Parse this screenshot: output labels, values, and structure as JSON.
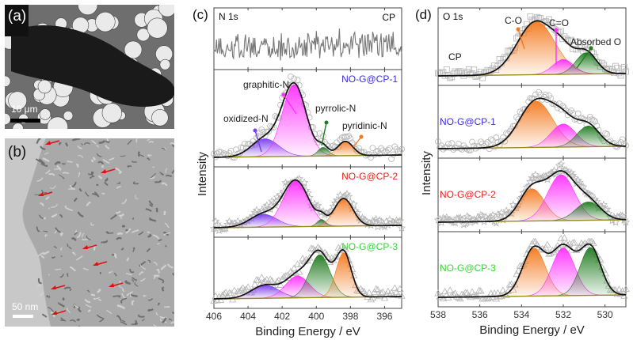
{
  "panels": {
    "a": {
      "label": "(a)",
      "scale_bar": "10 μm"
    },
    "b": {
      "label": "(b)",
      "scale_bar": "50 nm"
    },
    "c": {
      "label": "(c)"
    },
    "d": {
      "label": "(d)"
    }
  },
  "colors": {
    "oxidized": "#7a3cf0",
    "graphitic": "#ff30ff",
    "pyrrolic": "#1f7a1f",
    "pyridinic": "#f47a20",
    "CO": "#f47a20",
    "C_O_double": "#ff30ff",
    "absorbed": "#1f7a1f",
    "CP-1": "#3a2ae0",
    "CP-2": "#e8231e",
    "CP-3": "#3ad23a",
    "CP": "#111111"
  },
  "chart_data": [
    {
      "type": "line",
      "title": "N 1s",
      "xlabel": "Binding Energy / eV",
      "ylabel": "Intensity",
      "xlim": [
        406,
        395
      ],
      "xticks": [
        406,
        404,
        402,
        400,
        398,
        396
      ],
      "grid": false,
      "annotations": [
        "graphitic-N",
        "oxidized-N",
        "pyrrolic-N",
        "pyridinic-N"
      ],
      "subplots": [
        {
          "sample": "CP",
          "color_key": "CP",
          "kind": "raw-noise"
        },
        {
          "sample": "NO-G@CP-1",
          "color_key": "CP-1",
          "marker": "circle",
          "peaks": [
            {
              "name": "oxidized-N",
              "center": 403.0,
              "height": 0.25,
              "sigma": 0.8,
              "color_key": "oxidized"
            },
            {
              "name": "graphitic-N",
              "center": 401.3,
              "height": 1.0,
              "sigma": 0.7,
              "color_key": "graphitic"
            },
            {
              "name": "pyrrolic-N",
              "center": 399.6,
              "height": 0.12,
              "sigma": 0.3,
              "color_key": "pyrrolic"
            },
            {
              "name": "pyridinic-N",
              "center": 398.3,
              "height": 0.2,
              "sigma": 0.45,
              "color_key": "pyridinic"
            }
          ]
        },
        {
          "sample": "NO-G@CP-2",
          "color_key": "CP-2",
          "marker": "star",
          "peaks": [
            {
              "name": "oxidized-N",
              "center": 403.1,
              "height": 0.28,
              "sigma": 0.8,
              "color_key": "oxidized"
            },
            {
              "name": "graphitic-N",
              "center": 401.2,
              "height": 1.0,
              "sigma": 0.75,
              "color_key": "graphitic"
            },
            {
              "name": "pyrrolic-N",
              "center": 399.7,
              "height": 0.15,
              "sigma": 0.25,
              "color_key": "pyrrolic"
            },
            {
              "name": "pyridinic-N",
              "center": 398.4,
              "height": 0.6,
              "sigma": 0.55,
              "color_key": "pyridinic"
            }
          ]
        },
        {
          "sample": "NO-G@CP-3",
          "color_key": "CP-3",
          "marker": "triangle",
          "peaks": [
            {
              "name": "oxidized-N",
              "center": 403.0,
              "height": 0.25,
              "sigma": 0.8,
              "color_key": "oxidized"
            },
            {
              "name": "graphitic-N",
              "center": 401.1,
              "height": 0.42,
              "sigma": 0.7,
              "color_key": "graphitic"
            },
            {
              "name": "pyrrolic-N",
              "center": 399.8,
              "height": 0.82,
              "sigma": 0.6,
              "color_key": "pyrrolic"
            },
            {
              "name": "pyridinic-N",
              "center": 398.4,
              "height": 0.85,
              "sigma": 0.45,
              "color_key": "pyridinic"
            }
          ]
        }
      ]
    },
    {
      "type": "line",
      "title": "O 1s",
      "xlabel": "Binding Energy / eV",
      "ylabel": "Intensity",
      "xlim": [
        538,
        529
      ],
      "xticks": [
        538,
        536,
        534,
        532,
        530
      ],
      "grid": false,
      "annotations": [
        "C-O",
        "C=O",
        "Absorbed O"
      ],
      "subplots": [
        {
          "sample": "CP",
          "color_key": "CP",
          "marker": "square",
          "peaks": [
            {
              "name": "C-O",
              "center": 533.3,
              "height": 1.0,
              "sigma": 0.9,
              "color_key": "CO"
            },
            {
              "name": "C=O",
              "center": 532.0,
              "height": 0.28,
              "sigma": 0.5,
              "color_key": "C_O_double"
            },
            {
              "name": "Absorbed O",
              "center": 530.9,
              "height": 0.4,
              "sigma": 0.5,
              "color_key": "absorbed"
            }
          ]
        },
        {
          "sample": "NO-G@CP-1",
          "color_key": "CP-1",
          "marker": "circle",
          "peaks": [
            {
              "name": "C-O",
              "center": 533.3,
              "height": 1.0,
              "sigma": 0.8,
              "color_key": "CO"
            },
            {
              "name": "C=O",
              "center": 532.0,
              "height": 0.5,
              "sigma": 0.6,
              "color_key": "C_O_double"
            },
            {
              "name": "Absorbed O",
              "center": 530.8,
              "height": 0.45,
              "sigma": 0.55,
              "color_key": "absorbed"
            }
          ]
        },
        {
          "sample": "NO-G@CP-2",
          "color_key": "CP-2",
          "marker": "star",
          "peaks": [
            {
              "name": "C-O",
              "center": 533.5,
              "height": 0.7,
              "sigma": 0.6,
              "color_key": "CO"
            },
            {
              "name": "C=O",
              "center": 532.1,
              "height": 1.0,
              "sigma": 0.65,
              "color_key": "C_O_double"
            },
            {
              "name": "Absorbed O",
              "center": 530.8,
              "height": 0.4,
              "sigma": 0.6,
              "color_key": "absorbed"
            }
          ]
        },
        {
          "sample": "NO-G@CP-3",
          "color_key": "CP-3",
          "marker": "triangle",
          "peaks": [
            {
              "name": "C-O",
              "center": 533.4,
              "height": 0.85,
              "sigma": 0.55,
              "color_key": "CO"
            },
            {
              "name": "C=O",
              "center": 532.0,
              "height": 0.85,
              "sigma": 0.55,
              "color_key": "C_O_double"
            },
            {
              "name": "Absorbed O",
              "center": 530.7,
              "height": 0.85,
              "sigma": 0.5,
              "color_key": "absorbed"
            }
          ]
        }
      ]
    }
  ]
}
